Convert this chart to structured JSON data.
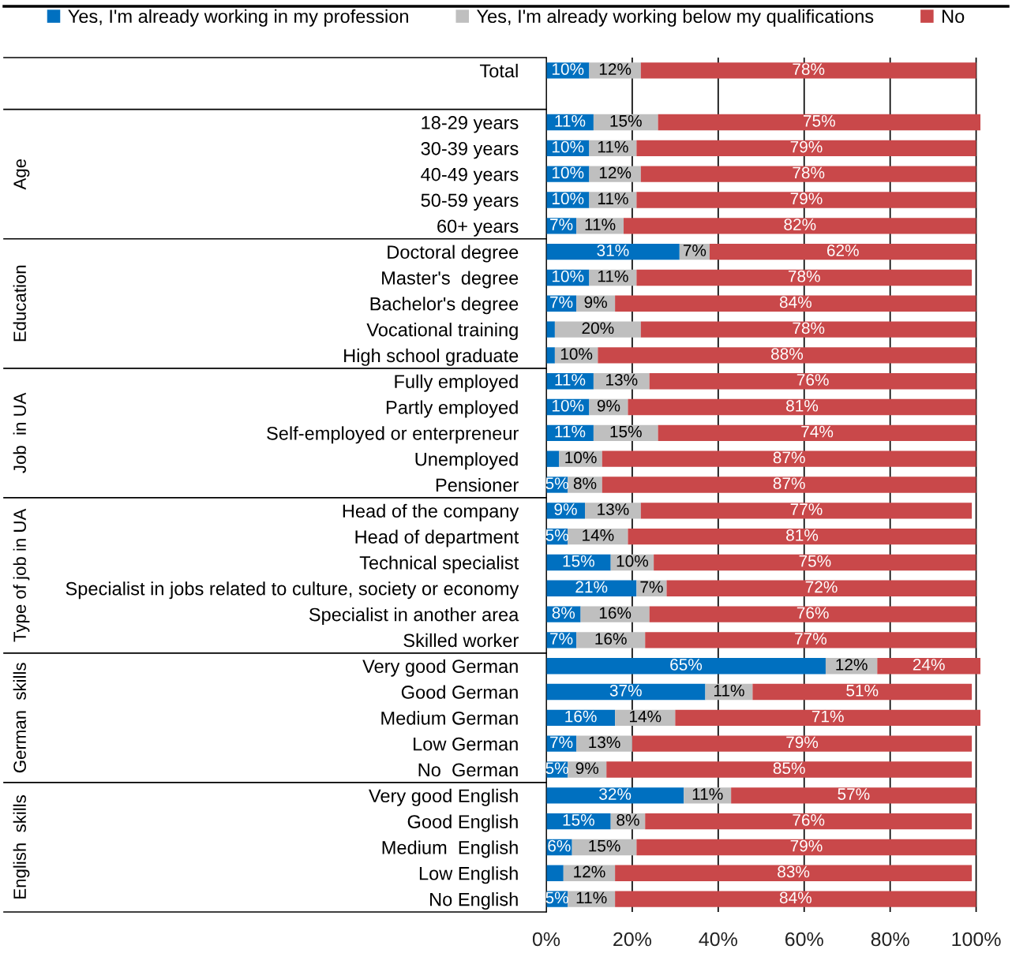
{
  "chart_data": {
    "type": "bar",
    "orientation": "horizontal",
    "stacked": true,
    "categories": [
      "Total",
      null,
      "18-29 years",
      "30-39 years",
      "40-49 years",
      "50-59 years",
      "60+ years",
      "Doctoral degree",
      "Master's  degree",
      "Bachelor's degree",
      "Vocational training",
      "High school graduate",
      "Fully employed",
      "Partly employed",
      "Self-employed or enterpreneur",
      "Unemployed",
      "Pensioner",
      "Head of the company",
      "Head of department",
      "Technical specialist",
      "Specialist in jobs related to culture, society or economy",
      "Specialist in another area",
      "Skilled worker",
      "Very good German",
      "Good German",
      "Medium German",
      "Low German",
      "No  German",
      "Very good English",
      "Good English",
      "Medium  English",
      "Low English",
      "No English"
    ],
    "series": [
      {
        "name": "Yes, I'm already working in my profession",
        "color": "#0070c0",
        "values": [
          10,
          null,
          11,
          10,
          10,
          10,
          7,
          31,
          10,
          7,
          2,
          2,
          11,
          10,
          11,
          3,
          5,
          9,
          5,
          15,
          21,
          8,
          7,
          65,
          37,
          16,
          7,
          5,
          32,
          15,
          6,
          4,
          5
        ],
        "value_labels": [
          "10%",
          null,
          "11%",
          "10%",
          "10%",
          "10%",
          "7%",
          "31%",
          "10%",
          "7%",
          null,
          null,
          "11%",
          "10%",
          "11%",
          null,
          "5%",
          "9%",
          "5%",
          "15%",
          "21%",
          "8%",
          "7%",
          "65%",
          "37%",
          "16%",
          "7%",
          "5%",
          "32%",
          "15%",
          "6%",
          null,
          "5%"
        ]
      },
      {
        "name": "Yes, I'm already working below my qualifications",
        "color": "#bfbfbf",
        "values": [
          12,
          null,
          15,
          11,
          12,
          11,
          11,
          7,
          11,
          9,
          20,
          10,
          13,
          9,
          15,
          10,
          8,
          13,
          14,
          10,
          7,
          16,
          16,
          12,
          11,
          14,
          13,
          9,
          11,
          8,
          15,
          12,
          11
        ],
        "value_labels": [
          "12%",
          null,
          "15%",
          "11%",
          "12%",
          "11%",
          "11%",
          "7%",
          "11%",
          "9%",
          "20%",
          "10%",
          "13%",
          "9%",
          "15%",
          "10%",
          "8%",
          "13%",
          "14%",
          "10%",
          "7%",
          "16%",
          "16%",
          "12%",
          "11%",
          "14%",
          "13%",
          "9%",
          "11%",
          "8%",
          "15%",
          "12%",
          "11%"
        ]
      },
      {
        "name": "No",
        "color": "#c9484a",
        "values": [
          78,
          null,
          75,
          79,
          78,
          79,
          82,
          62,
          78,
          84,
          78,
          88,
          76,
          81,
          74,
          87,
          87,
          77,
          81,
          75,
          72,
          76,
          77,
          24,
          51,
          71,
          79,
          85,
          57,
          76,
          79,
          83,
          84
        ],
        "value_labels": [
          "78%",
          null,
          "75%",
          "79%",
          "78%",
          "79%",
          "82%",
          "62%",
          "78%",
          "84%",
          "78%",
          "88%",
          "76%",
          "81%",
          "74%",
          "87%",
          "87%",
          "77%",
          "81%",
          "75%",
          "72%",
          "76%",
          "77%",
          "24%",
          "51%",
          "71%",
          "79%",
          "85%",
          "57%",
          "76%",
          "79%",
          "83%",
          "84%"
        ]
      }
    ],
    "xlim": [
      0,
      101
    ],
    "xticks": [
      {
        "value": 0,
        "label": "0%"
      },
      {
        "value": 20,
        "label": "20%"
      },
      {
        "value": 40,
        "label": "40%"
      },
      {
        "value": 60,
        "label": "60%"
      },
      {
        "value": 80,
        "label": "80%"
      },
      {
        "value": 100,
        "label": "100%"
      }
    ],
    "grid": "x",
    "legend": "top",
    "annotations": [
      "Age",
      "Education",
      "Job  in UA",
      "Type of job in UA",
      "German  skills",
      "English  skills"
    ]
  }
}
